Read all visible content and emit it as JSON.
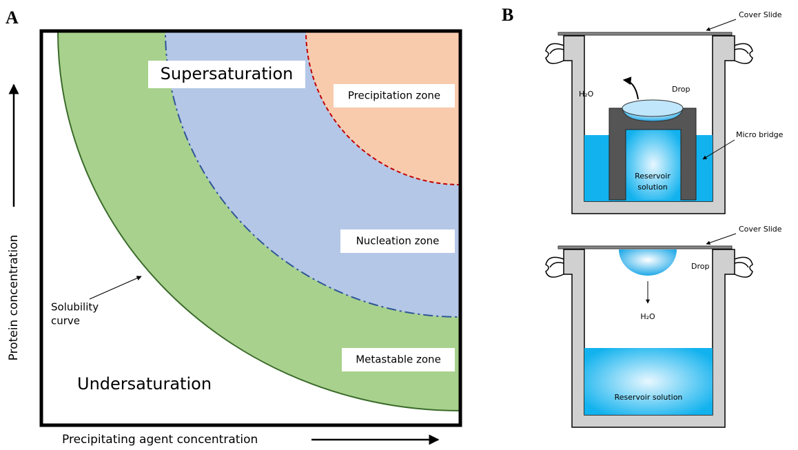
{
  "panel_a": {
    "label": "A",
    "regions": {
      "supersaturation": "Supersaturation",
      "precipitation": "Precipitation zone",
      "nucleation": "Nucleation zone",
      "metastable": "Metastable zone",
      "undersaturation": "Undersaturation"
    },
    "solubility_curve": [
      "Solubility",
      "curve"
    ],
    "y_axis_label": "Protein concentration",
    "x_axis_label": "Precipitating agent concentration"
  },
  "panel_b": {
    "label": "B",
    "top": {
      "cover_slide": "Cover Slide",
      "water": "H₂O",
      "drop": "Drop",
      "micro_bridge": "Micro bridge",
      "reservoir": [
        "Reservoir",
        "solution"
      ]
    },
    "bottom": {
      "cover_slide": "Cover Slide",
      "drop": "Drop",
      "water": "H₂O",
      "reservoir": "Reservoir solution"
    }
  }
}
